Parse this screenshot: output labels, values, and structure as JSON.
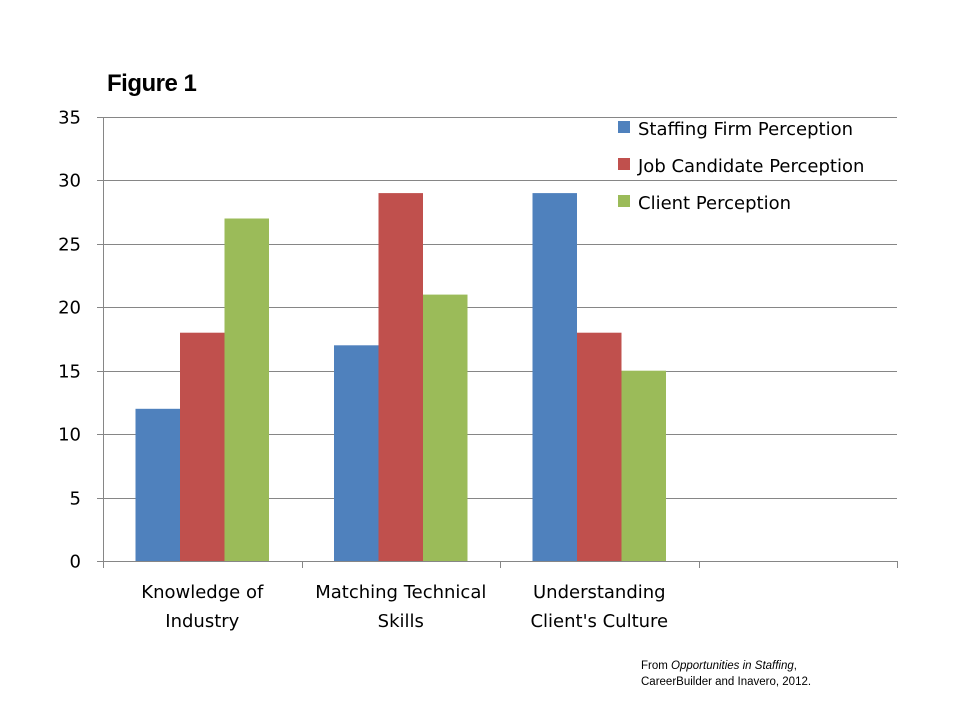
{
  "figure_title": "Figure 1",
  "source_note": {
    "prefix": "From ",
    "title": "Opportunities in Staffing",
    "suffix": ",",
    "line2": "CareerBuilder  and Inavero,  2012."
  },
  "colors": {
    "staffing": "#4F81BD",
    "candidate": "#C0504D",
    "client": "#9BBB59",
    "gridline": "#868686",
    "axis": "#868686"
  },
  "chart_data": {
    "type": "bar",
    "title": "Figure 1",
    "xlabel": "",
    "ylabel": "",
    "ylim": [
      0,
      35
    ],
    "yticks": [
      0,
      5,
      10,
      15,
      20,
      25,
      30,
      35
    ],
    "grid": true,
    "legend_position": "top-right",
    "categories": [
      [
        "Knowledge of",
        "Industry"
      ],
      [
        "Matching Technical",
        "Skills"
      ],
      [
        "Understanding",
        "Client's Culture"
      ],
      [
        "",
        ""
      ]
    ],
    "series": [
      {
        "name": "Staffing Firm Perception",
        "color": "#4F81BD",
        "values": [
          12,
          17,
          29,
          null
        ]
      },
      {
        "name": "Job Candidate Perception",
        "color": "#C0504D",
        "values": [
          18,
          29,
          18,
          null
        ]
      },
      {
        "name": "Client Perception",
        "color": "#9BBB59",
        "values": [
          27,
          21,
          15,
          null
        ]
      }
    ]
  }
}
